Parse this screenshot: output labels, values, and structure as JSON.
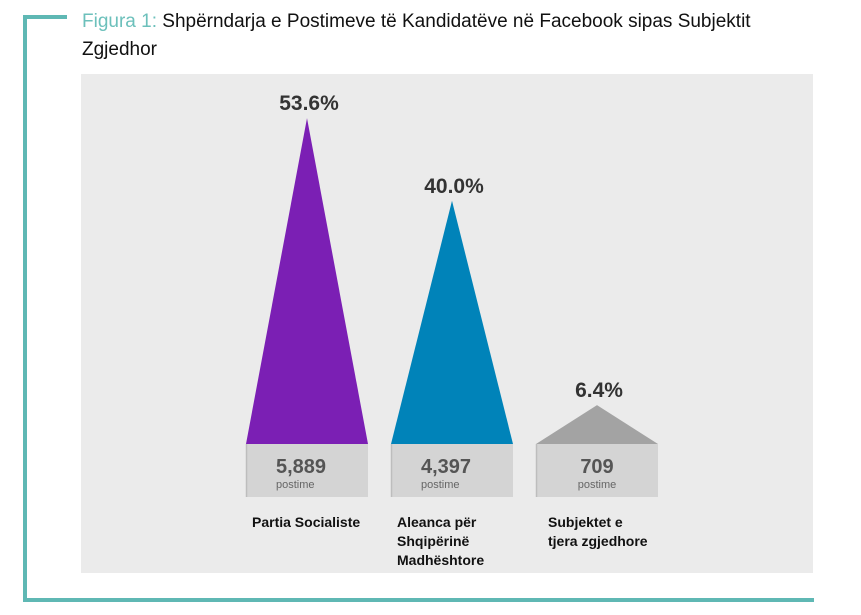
{
  "caption": {
    "prefix": "Figura 1:",
    "title": "Shpërndarja e Postimeve të Kandidatëve në Facebook sipas Subjektit Zgjedhor"
  },
  "chart_data": {
    "type": "bar",
    "title": "Shpërndarja e Postimeve të Kandidatëve në Facebook sipas Subjektit Zgjedhor",
    "categories": [
      "Partia Socialiste",
      "Aleanca për Shqipërinë Madhështore",
      "Subjektet e tjera zgjedhore"
    ],
    "category_lines": [
      [
        "Partia Socialiste"
      ],
      [
        "Aleanca për",
        "Shqipërinë",
        "Madhështore"
      ],
      [
        "Subjektet e",
        "tjera zgjedhore"
      ]
    ],
    "values": [
      53.6,
      40.0,
      6.4
    ],
    "value_labels": [
      "53.6%",
      "40.0%",
      "6.4%"
    ],
    "counts": [
      "5,889",
      "4,397",
      "709"
    ],
    "count_unit": "postime",
    "colors": [
      "#7b1fb4",
      "#0083b9",
      "#a3a3a3"
    ],
    "ylim": [
      0,
      55
    ],
    "xlabel": "",
    "ylabel": ""
  }
}
